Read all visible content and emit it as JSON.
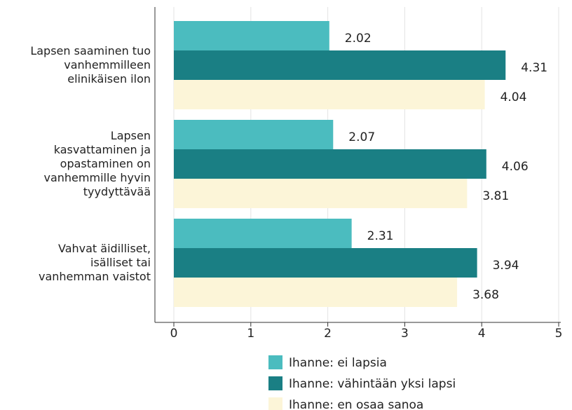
{
  "chart_data": {
    "type": "bar",
    "orientation": "horizontal",
    "categories": [
      "Lapsen saaminen tuo\nvanhemmilleen\nelinikäisen ilon",
      "Lapsen\nkasvattaminen ja\nopastaminen on\nvanhemmille hyvin\ntyydyttävää",
      "Vahvat äidilliset,\nisälliset tai\nvanhemman vaistot"
    ],
    "series": [
      {
        "name": "Ihanne: ei lapsia",
        "color": "#4bbcbf",
        "values": [
          2.02,
          2.07,
          2.31
        ]
      },
      {
        "name": "Ihanne: vähintään yksi lapsi",
        "color": "#1a7f84",
        "values": [
          4.31,
          4.06,
          3.94
        ]
      },
      {
        "name": "Ihanne: en osaa sanoa",
        "color": "#fcf5d8",
        "values": [
          4.04,
          3.81,
          3.68
        ]
      }
    ],
    "xlim": [
      0,
      5
    ],
    "xticks": [
      0,
      1,
      2,
      3,
      4,
      5
    ],
    "grid": true,
    "legend": "bottom"
  }
}
